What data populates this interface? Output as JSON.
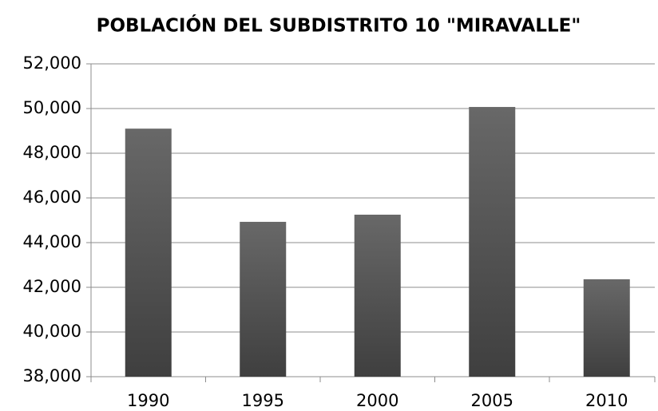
{
  "chart_data": {
    "type": "bar",
    "title": "POBLACIÓN DEL SUBDISTRITO 10 \"MIRAVALLE\"",
    "categories": [
      "1990",
      "1995",
      "2000",
      "2005",
      "2010"
    ],
    "values": [
      49100,
      44930,
      45250,
      50070,
      42360
    ],
    "color": "#555555",
    "ylim": [
      38000,
      52000
    ],
    "yticks": [
      {
        "value": 38000,
        "label": "38,000"
      },
      {
        "value": 40000,
        "label": "40,000"
      },
      {
        "value": 42000,
        "label": "42,000"
      },
      {
        "value": 44000,
        "label": "44,000"
      },
      {
        "value": 46000,
        "label": "46,000"
      },
      {
        "value": 48000,
        "label": "48,000"
      },
      {
        "value": 50000,
        "label": "50,000"
      },
      {
        "value": 52000,
        "label": "52,000"
      }
    ],
    "grid": true
  }
}
